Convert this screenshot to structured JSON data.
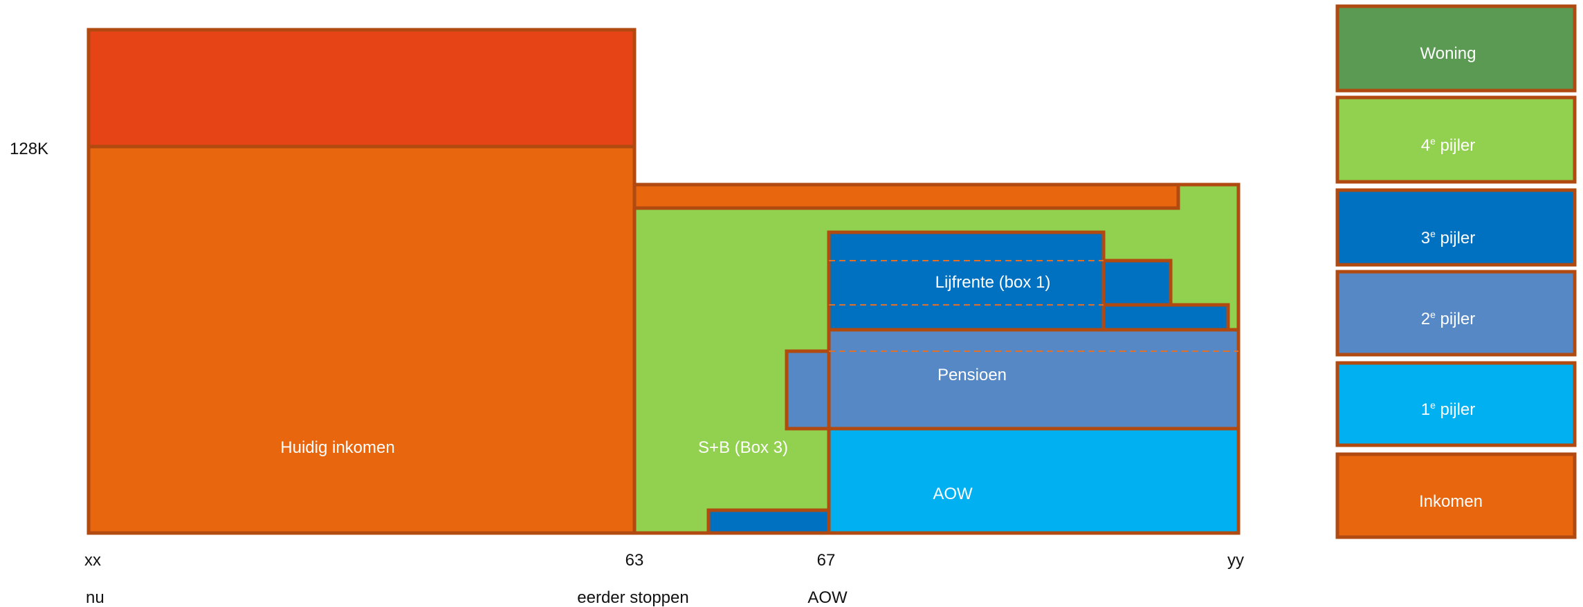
{
  "colors": {
    "border": "#b04a10",
    "orange": "#e8660e",
    "red_orange": "#e64316",
    "light_green": "#92d050",
    "dark_green": "#5a9a52",
    "dark_blue": "#0070c0",
    "mid_blue": "#5588c4",
    "light_blue": "#00b0f0",
    "dashed": "#e0702a"
  },
  "y_axis": {
    "label": "128K"
  },
  "x_axis": {
    "ticks": [
      "xx",
      "63",
      "67",
      "yy"
    ],
    "captions": [
      "nu",
      "eerder stoppen",
      "AOW"
    ]
  },
  "blocks": {
    "huidig_inkomen": "Huidig inkomen",
    "box3": "S+B (Box 3)",
    "lijfrente": "Lijfrente (box 1)",
    "pensioen": "Pensioen",
    "aow": "AOW"
  },
  "legend": [
    {
      "base": "Woning",
      "sup": "",
      "rest": "",
      "color": "#5a9a52"
    },
    {
      "base": "4",
      "sup": "e",
      "rest": " pijler",
      "color": "#92d050"
    },
    {
      "base": "3",
      "sup": "e",
      "rest": " pijler",
      "color": "#0070c0"
    },
    {
      "base": "2",
      "sup": "e",
      "rest": " pijler",
      "color": "#5588c4"
    },
    {
      "base": "1",
      "sup": "e",
      "rest": " pijler",
      "color": "#00b0f0"
    },
    {
      "base": "Inkomen",
      "sup": "",
      "rest": "",
      "color": "#e8660e"
    }
  ]
}
